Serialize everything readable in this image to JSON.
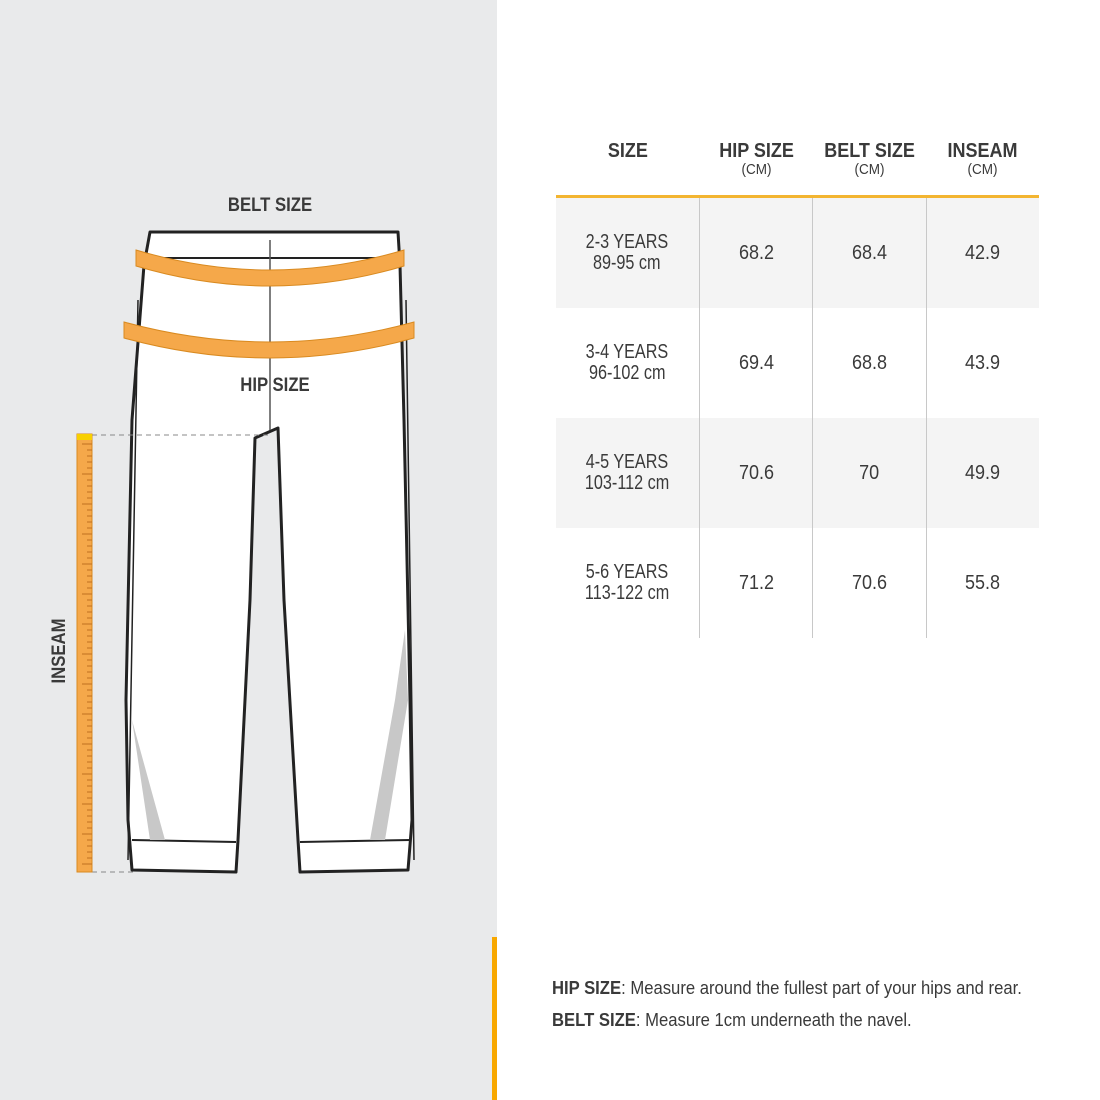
{
  "illustration": {
    "belt_label": "BELT SIZE",
    "hip_label": "HIP SIZE",
    "inseam_label": "INSEAM"
  },
  "colors": {
    "accent": "#f8a800",
    "tape": "#f5a84a",
    "panel": "#e9eaeb",
    "row_shade": "#f4f4f4"
  },
  "table": {
    "headers": [
      {
        "title": "SIZE",
        "unit": ""
      },
      {
        "title": "HIP SIZE",
        "unit": "(CM)"
      },
      {
        "title": "BELT SIZE",
        "unit": "(CM)"
      },
      {
        "title": "INSEAM",
        "unit": "(CM)"
      }
    ],
    "rows": [
      {
        "size": "2-3 YEARS",
        "height": "89-95 cm",
        "hip": "68.2",
        "belt": "68.4",
        "inseam": "42.9"
      },
      {
        "size": "3-4 YEARS",
        "height": "96-102 cm",
        "hip": "69.4",
        "belt": "68.8",
        "inseam": "43.9"
      },
      {
        "size": "4-5 YEARS",
        "height": "103-112 cm",
        "hip": "70.6",
        "belt": "70",
        "inseam": "49.9"
      },
      {
        "size": "5-6 YEARS",
        "height": "113-122 cm",
        "hip": "71.2",
        "belt": "70.6",
        "inseam": "55.8"
      }
    ]
  },
  "notes": [
    {
      "term": "HIP SIZE",
      "text": ": Measure around the fullest part of your hips and rear."
    },
    {
      "term": "BELT SIZE",
      "text": ": Measure 1cm underneath the navel."
    }
  ]
}
